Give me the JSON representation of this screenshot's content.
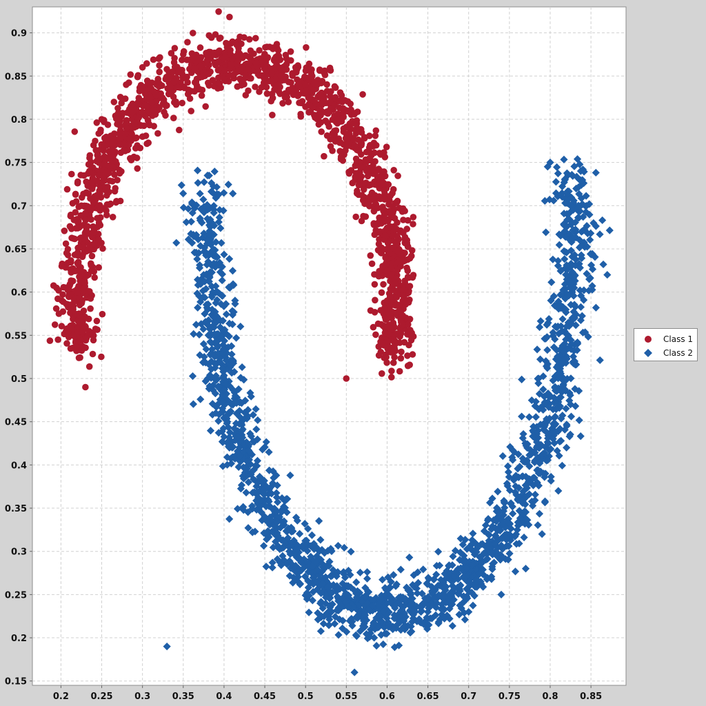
{
  "chart_data": {
    "type": "scatter",
    "title": "",
    "xlabel": "",
    "ylabel": "",
    "xlim": [
      0.165,
      0.893
    ],
    "ylim": [
      0.145,
      0.93
    ],
    "grid": true,
    "legend_position": "right",
    "x_ticks": [
      "0.2",
      "0.25",
      "0.3",
      "0.35",
      "0.4",
      "0.45",
      "0.5",
      "0.55",
      "0.6",
      "0.65",
      "0.7",
      "0.75",
      "0.8",
      "0.85"
    ],
    "y_ticks": [
      "0.15",
      "0.2",
      "0.25",
      "0.3",
      "0.35",
      "0.4",
      "0.45",
      "0.5",
      "0.55",
      "0.6",
      "0.65",
      "0.7",
      "0.75",
      "0.8",
      "0.85",
      "0.9"
    ],
    "series": [
      {
        "name": "Class 1",
        "marker": "circle",
        "color": "#ad1a2e",
        "shape": "upper arc centered near (0.415, 0.59), radius about 0.195 in x and 0.275 in y, open at the bottom",
        "points": [
          [
            0.22,
            0.6
          ],
          [
            0.215,
            0.58
          ],
          [
            0.225,
            0.62
          ],
          [
            0.23,
            0.66
          ],
          [
            0.225,
            0.7
          ],
          [
            0.235,
            0.74
          ],
          [
            0.24,
            0.77
          ],
          [
            0.25,
            0.8
          ],
          [
            0.265,
            0.82
          ],
          [
            0.28,
            0.84
          ],
          [
            0.3,
            0.86
          ],
          [
            0.32,
            0.87
          ],
          [
            0.35,
            0.875
          ],
          [
            0.38,
            0.875
          ],
          [
            0.41,
            0.87
          ],
          [
            0.44,
            0.865
          ],
          [
            0.47,
            0.85
          ],
          [
            0.5,
            0.84
          ],
          [
            0.52,
            0.82
          ],
          [
            0.54,
            0.8
          ],
          [
            0.56,
            0.77
          ],
          [
            0.575,
            0.74
          ],
          [
            0.585,
            0.71
          ],
          [
            0.59,
            0.68
          ],
          [
            0.6,
            0.65
          ],
          [
            0.605,
            0.62
          ],
          [
            0.6,
            0.59
          ],
          [
            0.6,
            0.56
          ],
          [
            0.61,
            0.54
          ],
          [
            0.215,
            0.55
          ],
          [
            0.23,
            0.49
          ],
          [
            0.55,
            0.5
          ]
        ]
      },
      {
        "name": "Class 2",
        "marker": "diamond",
        "color": "#1f5fa8",
        "shape": "lower arc centered near (0.6, 0.69), radius about 0.23 in x and 0.46 in y, open at the top",
        "points": [
          [
            0.38,
            0.66
          ],
          [
            0.375,
            0.62
          ],
          [
            0.38,
            0.58
          ],
          [
            0.375,
            0.54
          ],
          [
            0.38,
            0.5
          ],
          [
            0.39,
            0.46
          ],
          [
            0.41,
            0.42
          ],
          [
            0.43,
            0.38
          ],
          [
            0.45,
            0.34
          ],
          [
            0.48,
            0.3
          ],
          [
            0.51,
            0.27
          ],
          [
            0.55,
            0.25
          ],
          [
            0.6,
            0.24
          ],
          [
            0.65,
            0.23
          ],
          [
            0.7,
            0.23
          ],
          [
            0.74,
            0.25
          ],
          [
            0.77,
            0.28
          ],
          [
            0.79,
            0.32
          ],
          [
            0.81,
            0.37
          ],
          [
            0.82,
            0.42
          ],
          [
            0.825,
            0.47
          ],
          [
            0.83,
            0.52
          ],
          [
            0.83,
            0.57
          ],
          [
            0.83,
            0.62
          ],
          [
            0.83,
            0.67
          ],
          [
            0.825,
            0.7
          ],
          [
            0.8,
            0.75
          ],
          [
            0.87,
            0.62
          ],
          [
            0.33,
            0.19
          ],
          [
            0.56,
            0.16
          ]
        ]
      }
    ]
  }
}
